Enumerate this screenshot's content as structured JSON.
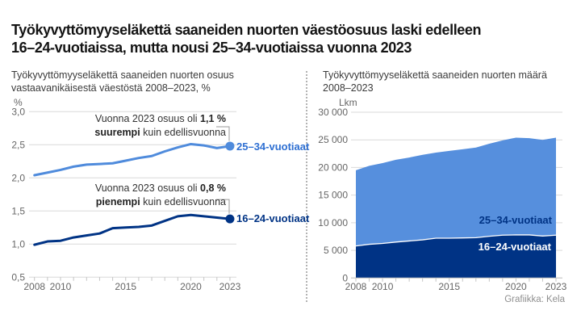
{
  "header": {
    "title_line1": "Työkyvyttömyyseläkettä saaneiden nuorten väestöosuus laski edelleen",
    "title_line2": "16–24-vuotiaissa, mutta nousi 25–34-vuotiaissa vuonna 2023"
  },
  "credit": "Grafiikka: Kela",
  "colors": {
    "light_blue_line": "#4f8bdc",
    "light_blue_area": "#568fdd",
    "dark_navy": "#003385",
    "label_blue": "#2e6fd2",
    "gridline": "#d9d9d9",
    "axis": "#c4c4c4",
    "connector": "#9a9a9a"
  },
  "chart_data": [
    {
      "type": "line",
      "title_line1": "Työkyvyttömyyseläkettä saaneiden nuorten osuus",
      "title_line2": "vastaavanikäisestä väestöstä 2008–2023, %",
      "ylabel": "%",
      "grid": true,
      "legend_position": "end-of-line",
      "x": [
        2008,
        2009,
        2010,
        2011,
        2012,
        2013,
        2014,
        2015,
        2016,
        2017,
        2018,
        2019,
        2020,
        2021,
        2022,
        2023
      ],
      "x_tick_labels": [
        2008,
        2010,
        2015,
        2020,
        2023
      ],
      "ylim": [
        0.5,
        3.0
      ],
      "yticks": [
        {
          "v": 0.5,
          "label": "0,5"
        },
        {
          "v": 1.0,
          "label": "1,0"
        },
        {
          "v": 1.5,
          "label": "1,5"
        },
        {
          "v": 2.0,
          "label": "2,0"
        },
        {
          "v": 2.5,
          "label": "2,5"
        },
        {
          "v": 3.0,
          "label": "3,0"
        }
      ],
      "series": [
        {
          "name": "25–34-vuotiaat",
          "color": "#4f8bdc",
          "values": [
            2.04,
            2.08,
            2.12,
            2.17,
            2.2,
            2.21,
            2.22,
            2.26,
            2.3,
            2.33,
            2.4,
            2.46,
            2.51,
            2.49,
            2.45,
            2.48
          ]
        },
        {
          "name": "16–24-vuotiaat",
          "color": "#003385",
          "values": [
            0.99,
            1.04,
            1.05,
            1.1,
            1.13,
            1.16,
            1.24,
            1.25,
            1.26,
            1.28,
            1.35,
            1.42,
            1.44,
            1.42,
            1.4,
            1.38
          ]
        }
      ],
      "annotations": [
        {
          "line1_prefix": "Vuonna 2023 osuus oli ",
          "line1_bold": "1,1 %",
          "line2_bold": "suurempi",
          "line2_suffix": " kuin edellisvuonna"
        },
        {
          "line1_prefix": "Vuonna 2023 osuus oli ",
          "line1_bold": "0,8 %",
          "line2_bold": "pienempi",
          "line2_suffix": " kuin edellisvuonna"
        }
      ]
    },
    {
      "type": "area",
      "title_line1": "Työkyvyttömyyseläkettä saaneiden nuorten määrä",
      "title_line2": "2008–2023",
      "ylabel": "Lkm",
      "grid": true,
      "stacked": true,
      "x": [
        2008,
        2009,
        2010,
        2011,
        2012,
        2013,
        2014,
        2015,
        2016,
        2017,
        2018,
        2019,
        2020,
        2021,
        2022,
        2023
      ],
      "x_tick_labels": [
        2008,
        2010,
        2015,
        2020,
        2023
      ],
      "ylim": [
        0,
        30000
      ],
      "yticks": [
        {
          "v": 0,
          "label": "0"
        },
        {
          "v": 5000,
          "label": "5 000"
        },
        {
          "v": 10000,
          "label": "10 000"
        },
        {
          "v": 15000,
          "label": "15 000"
        },
        {
          "v": 20000,
          "label": "20 000"
        },
        {
          "v": 25000,
          "label": "25 000"
        },
        {
          "v": 30000,
          "label": "30 000"
        }
      ],
      "series": [
        {
          "name": "16–24-vuotiaat",
          "color": "#003385",
          "values": [
            5800,
            6100,
            6250,
            6500,
            6700,
            6900,
            7200,
            7200,
            7250,
            7300,
            7550,
            7750,
            7800,
            7800,
            7600,
            7750
          ]
        },
        {
          "name": "25–34-vuotiaat",
          "color": "#568fdd",
          "values": [
            13700,
            14200,
            14550,
            14900,
            15100,
            15400,
            15500,
            15800,
            16050,
            16300,
            16750,
            17150,
            17600,
            17500,
            17400,
            17650
          ]
        }
      ]
    }
  ]
}
